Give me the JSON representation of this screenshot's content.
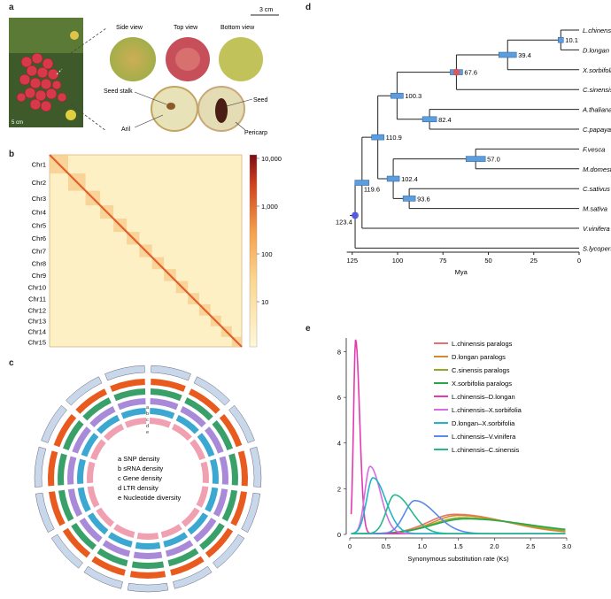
{
  "panels": {
    "a": {
      "label": "a",
      "scale_bar": "3 cm",
      "photo_watermark": "5 cm",
      "views": [
        "Side view",
        "Top view",
        "Bottom view"
      ],
      "parts": {
        "seed_stalk": "Seed stalk",
        "seed": "Seed",
        "aril": "Aril",
        "pericarp": "Pericarp"
      }
    },
    "b": {
      "label": "b",
      "chromosomes": [
        "Chr1",
        "Chr2",
        "Chr3",
        "Chr4",
        "Chr5",
        "Chr6",
        "Chr7",
        "Chr8",
        "Chr9",
        "Chr10",
        "Chr11",
        "Chr12",
        "Chr13",
        "Chr14",
        "Chr15"
      ],
      "colorbar_ticks": [
        "10,000",
        "1,000",
        "100",
        "10"
      ]
    },
    "c": {
      "label": "c",
      "legend": [
        "a SNP density",
        "b sRNA density",
        "c Gene density",
        "d LTR density",
        "e Nucleotide diversity"
      ],
      "track_letters": [
        "a",
        "b",
        "c",
        "d",
        "e"
      ]
    },
    "d": {
      "label": "d",
      "species": [
        "L.chinensis",
        "D.longan",
        "X.sorbifolium",
        "C.sinensis",
        "A.thaliana",
        "C.papaya",
        "F.vesca",
        "M.domestica",
        "C.sativus",
        "M.sativa",
        "V.vinifera",
        "S.lycopersicum"
      ],
      "node_ages": [
        "10.1",
        "39.4",
        "67.6",
        "100.3",
        "82.4",
        "110.9",
        "57.0",
        "102.4",
        "119.6",
        "93.6",
        "123.4"
      ],
      "axis_ticks": [
        "125",
        "100",
        "75",
        "50",
        "25",
        "0"
      ],
      "axis_label": "Mya"
    }
  },
  "chart_data": {
    "label": "e",
    "type": "line",
    "xlabel": "Synonymous substitution rate (Ks)",
    "ylabel": "",
    "xlim": [
      0,
      3.0
    ],
    "ylim": [
      0,
      8.6
    ],
    "x_ticks": [
      "0",
      "0.5",
      "1.0",
      "1.5",
      "2.0",
      "2.5",
      "3.0"
    ],
    "y_ticks": [
      "0",
      "2",
      "4",
      "6",
      "8"
    ],
    "legend_position": "top-right",
    "series": [
      {
        "name": "L.chinensis paralogs",
        "color": "#e8706a",
        "peak_x": 1.45,
        "peak_y": 0.85,
        "width": 0.45
      },
      {
        "name": "D.longan paralogs",
        "color": "#d28a2e",
        "peak_x": 1.5,
        "peak_y": 0.8,
        "width": 0.45
      },
      {
        "name": "C.sinensis paralogs",
        "color": "#8faa2a",
        "peak_x": 1.55,
        "peak_y": 0.7,
        "width": 0.5
      },
      {
        "name": "X.sorbifolia paralogs",
        "color": "#25a84a",
        "peak_x": 1.6,
        "peak_y": 0.65,
        "width": 0.55
      },
      {
        "name": "L.chinensis–D.longan",
        "color": "#e43ab0",
        "peak_x": 0.08,
        "peak_y": 8.5,
        "width": 0.035
      },
      {
        "name": "L.chinensis–X.sorbifolia",
        "color": "#d66ce0",
        "peak_x": 0.28,
        "peak_y": 2.95,
        "width": 0.09
      },
      {
        "name": "D.longan–X.sorbifolia",
        "color": "#22b5c9",
        "peak_x": 0.32,
        "peak_y": 2.45,
        "width": 0.11
      },
      {
        "name": "L.chinensis–V.vinifera",
        "color": "#5a8ae8",
        "peak_x": 0.9,
        "peak_y": 1.45,
        "width": 0.18
      },
      {
        "name": "L.chinensis–C.sinensis",
        "color": "#26b88f",
        "peak_x": 0.62,
        "peak_y": 1.7,
        "width": 0.14
      }
    ]
  }
}
